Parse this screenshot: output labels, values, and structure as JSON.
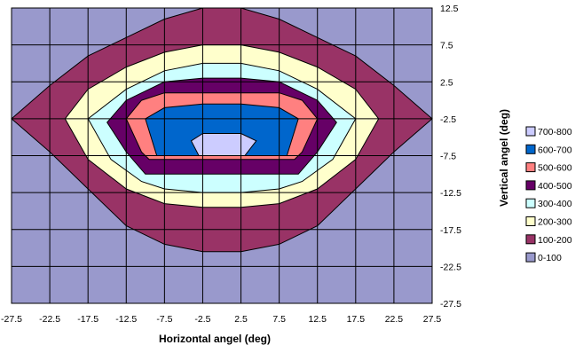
{
  "chart_data": {
    "type": "contour",
    "title": "",
    "xlabel": "Horizontal angel (deg)",
    "ylabel": "Vertical angel (deg)",
    "xlim": [
      -27.5,
      27.5
    ],
    "ylim": [
      -27.5,
      12.5
    ],
    "x_ticks": [
      "-27.5",
      "-22.5",
      "-17.5",
      "-12.5",
      "-7.5",
      "-2.5",
      "2.5",
      "7.5",
      "12.5",
      "17.5",
      "22.5",
      "27.5"
    ],
    "y_ticks": [
      "12.5",
      "7.5",
      "2.5",
      "-2.5",
      "-7.5",
      "-12.5",
      "-17.5",
      "-22.5",
      "-27.5"
    ],
    "grid": true,
    "y_axis_position": "right",
    "legend_position": "right",
    "bands": [
      {
        "name": "0-100",
        "color": "#9999cc"
      },
      {
        "name": "100-200",
        "color": "#993366"
      },
      {
        "name": "200-300",
        "color": "#ffffcc"
      },
      {
        "name": "300-400",
        "color": "#ccffff"
      },
      {
        "name": "400-500",
        "color": "#660066"
      },
      {
        "name": "500-600",
        "color": "#ff8080"
      },
      {
        "name": "600-700",
        "color": "#0066cc"
      },
      {
        "name": "700-800",
        "color": "#ccccff"
      }
    ],
    "contours": [
      {
        "band": "100-200",
        "points": [
          [
            -27.5,
            -2.5
          ],
          [
            -22.5,
            2
          ],
          [
            -17.5,
            6
          ],
          [
            -12.5,
            8.5
          ],
          [
            -7.5,
            11
          ],
          [
            -2.5,
            12.5
          ],
          [
            2.5,
            12.5
          ],
          [
            7.5,
            11
          ],
          [
            12.5,
            8.5
          ],
          [
            17.5,
            6
          ],
          [
            22.5,
            2
          ],
          [
            27.5,
            -2.5
          ],
          [
            22.5,
            -7
          ],
          [
            17.5,
            -12
          ],
          [
            12.5,
            -17
          ],
          [
            7.5,
            -19.5
          ],
          [
            2.5,
            -20.5
          ],
          [
            -2.5,
            -20.5
          ],
          [
            -7.5,
            -19.5
          ],
          [
            -12.5,
            -17
          ],
          [
            -17.5,
            -12
          ],
          [
            -22.5,
            -7
          ]
        ]
      },
      {
        "band": "200-300",
        "points": [
          [
            -20.5,
            -2.5
          ],
          [
            -17.5,
            1.5
          ],
          [
            -12.5,
            4.5
          ],
          [
            -7.5,
            6.5
          ],
          [
            -2.5,
            7.5
          ],
          [
            2.5,
            7.5
          ],
          [
            7.5,
            6.5
          ],
          [
            12.5,
            4.5
          ],
          [
            17.5,
            1.5
          ],
          [
            20.5,
            -2.5
          ],
          [
            17.5,
            -8
          ],
          [
            12.5,
            -12
          ],
          [
            7.5,
            -14
          ],
          [
            2.5,
            -14.5
          ],
          [
            -2.5,
            -14.5
          ],
          [
            -7.5,
            -14
          ],
          [
            -12.5,
            -12
          ],
          [
            -17.5,
            -8
          ]
        ]
      },
      {
        "band": "300-400",
        "points": [
          [
            -17.5,
            -2.5
          ],
          [
            -12.5,
            1.5
          ],
          [
            -7.5,
            4
          ],
          [
            -2.5,
            5
          ],
          [
            2.5,
            5
          ],
          [
            7.5,
            4
          ],
          [
            12.5,
            1.5
          ],
          [
            17.5,
            -2.5
          ],
          [
            14.5,
            -8
          ],
          [
            10.5,
            -11
          ],
          [
            7.5,
            -12
          ],
          [
            2.5,
            -12.5
          ],
          [
            -2.5,
            -12.5
          ],
          [
            -7.5,
            -12
          ],
          [
            -10.5,
            -11
          ],
          [
            -14.5,
            -8
          ]
        ]
      },
      {
        "band": "400-500",
        "points": [
          [
            -15,
            -3
          ],
          [
            -12.5,
            0
          ],
          [
            -7.5,
            2.5
          ],
          [
            -2.5,
            3
          ],
          [
            2.5,
            3
          ],
          [
            7.5,
            2.5
          ],
          [
            12.5,
            0
          ],
          [
            15,
            -3
          ],
          [
            12.5,
            -7
          ],
          [
            10,
            -10
          ],
          [
            7.5,
            -10
          ],
          [
            2.5,
            -10
          ],
          [
            -2.5,
            -10
          ],
          [
            -7.5,
            -10
          ],
          [
            -10,
            -10
          ],
          [
            -12.5,
            -7
          ]
        ]
      },
      {
        "band": "500-600",
        "points": [
          [
            -12.5,
            -2.5
          ],
          [
            -10.5,
            0
          ],
          [
            -7.5,
            1
          ],
          [
            7.5,
            1
          ],
          [
            10.5,
            0
          ],
          [
            12.5,
            -2.5
          ],
          [
            10.5,
            -7
          ],
          [
            9.5,
            -8
          ],
          [
            -9.5,
            -8
          ],
          [
            -10.5,
            -7
          ]
        ]
      },
      {
        "band": "600-700",
        "points": [
          [
            -10,
            -2.5
          ],
          [
            -7.5,
            -1
          ],
          [
            -2.5,
            -0.5
          ],
          [
            2.5,
            -0.5
          ],
          [
            7.5,
            -1
          ],
          [
            10,
            -2.5
          ],
          [
            8.5,
            -7.5
          ],
          [
            -8.5,
            -7.5
          ]
        ]
      },
      {
        "band": "700-800",
        "points": [
          [
            -4,
            -5.5
          ],
          [
            -2.5,
            -4.5
          ],
          [
            2.5,
            -4.5
          ],
          [
            4.5,
            -5.5
          ],
          [
            3,
            -7.5
          ],
          [
            -3,
            -7.5
          ]
        ]
      }
    ]
  }
}
